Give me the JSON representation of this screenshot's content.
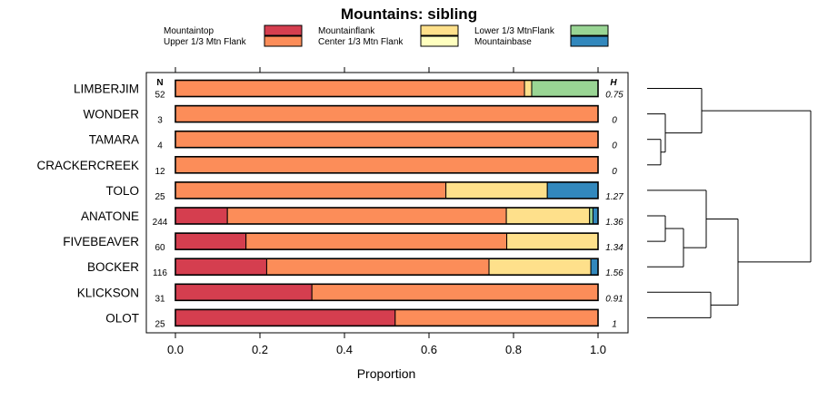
{
  "chart_data": {
    "type": "bar",
    "stacked": true,
    "orientation": "horizontal",
    "title": "Mountains: sibling",
    "xlabel": "Proportion",
    "ylabel": "",
    "xlim": [
      0,
      1
    ],
    "xticks": [
      "0.0",
      "0.2",
      "0.4",
      "0.6",
      "0.8",
      "1.0"
    ],
    "legend_position": "top",
    "n_header": "N",
    "h_header": "H",
    "legend": [
      {
        "name": "Mountaintop",
        "color": "#d53e4f"
      },
      {
        "name": "Upper 1/3 Mtn Flank",
        "color": "#fc8d59"
      },
      {
        "name": "Mountainflank",
        "color": "#fee08b"
      },
      {
        "name": "Center 1/3 Mtn Flank",
        "color": "#ffffbf"
      },
      {
        "name": "Lower 1/3 MtnFlank",
        "color": "#99d594"
      },
      {
        "name": "Mountainbase",
        "color": "#3288bd"
      }
    ],
    "rows": [
      {
        "label": "LIMBERJIM",
        "n": "52",
        "h": "0.75",
        "segments": [
          0,
          0.826,
          0.017,
          0,
          0.157,
          0
        ]
      },
      {
        "label": "WONDER",
        "n": "3",
        "h": "0",
        "segments": [
          0,
          1,
          0,
          0,
          0,
          0
        ]
      },
      {
        "label": "TAMARA",
        "n": "4",
        "h": "0",
        "segments": [
          0,
          1,
          0,
          0,
          0,
          0
        ]
      },
      {
        "label": "CRACKERCREEK",
        "n": "12",
        "h": "0",
        "segments": [
          0,
          1,
          0,
          0,
          0,
          0
        ]
      },
      {
        "label": "TOLO",
        "n": "25",
        "h": "1.27",
        "segments": [
          0,
          0.64,
          0.24,
          0,
          0,
          0.12
        ]
      },
      {
        "label": "ANATONE",
        "n": "244",
        "h": "1.36",
        "segments": [
          0.123,
          0.66,
          0.197,
          0,
          0.008,
          0.012
        ]
      },
      {
        "label": "FIVEBEAVER",
        "n": "60",
        "h": "1.34",
        "segments": [
          0.167,
          0.617,
          0.216,
          0,
          0,
          0
        ]
      },
      {
        "label": "BOCKER",
        "n": "116",
        "h": "1.56",
        "segments": [
          0.216,
          0.526,
          0.241,
          0,
          0,
          0.017
        ]
      },
      {
        "label": "KLICKSON",
        "n": "31",
        "h": "0.91",
        "segments": [
          0.323,
          0.677,
          0,
          0,
          0,
          0
        ]
      },
      {
        "label": "OLOT",
        "n": "25",
        "h": "1",
        "segments": [
          0.52,
          0.48,
          0,
          0,
          0,
          0
        ]
      }
    ],
    "dendrogram": {
      "merges": [
        {
          "left": 2,
          "right": 3,
          "height": 0.15
        },
        {
          "left": 1,
          "right": "m0",
          "height": 0.2
        },
        {
          "left": 0,
          "right": "m1",
          "height": 0.6
        },
        {
          "left": 5,
          "right": 6,
          "height": 0.2
        },
        {
          "left": "m3",
          "right": 7,
          "height": 0.4
        },
        {
          "left": 4,
          "right": "m4",
          "height": 0.65
        },
        {
          "left": 8,
          "right": 9,
          "height": 0.7
        },
        {
          "left": "m5",
          "right": "m6",
          "height": 1.0
        },
        {
          "left": "m2",
          "right": "m7",
          "height": 1.8
        }
      ],
      "max_height": 1.8
    }
  }
}
